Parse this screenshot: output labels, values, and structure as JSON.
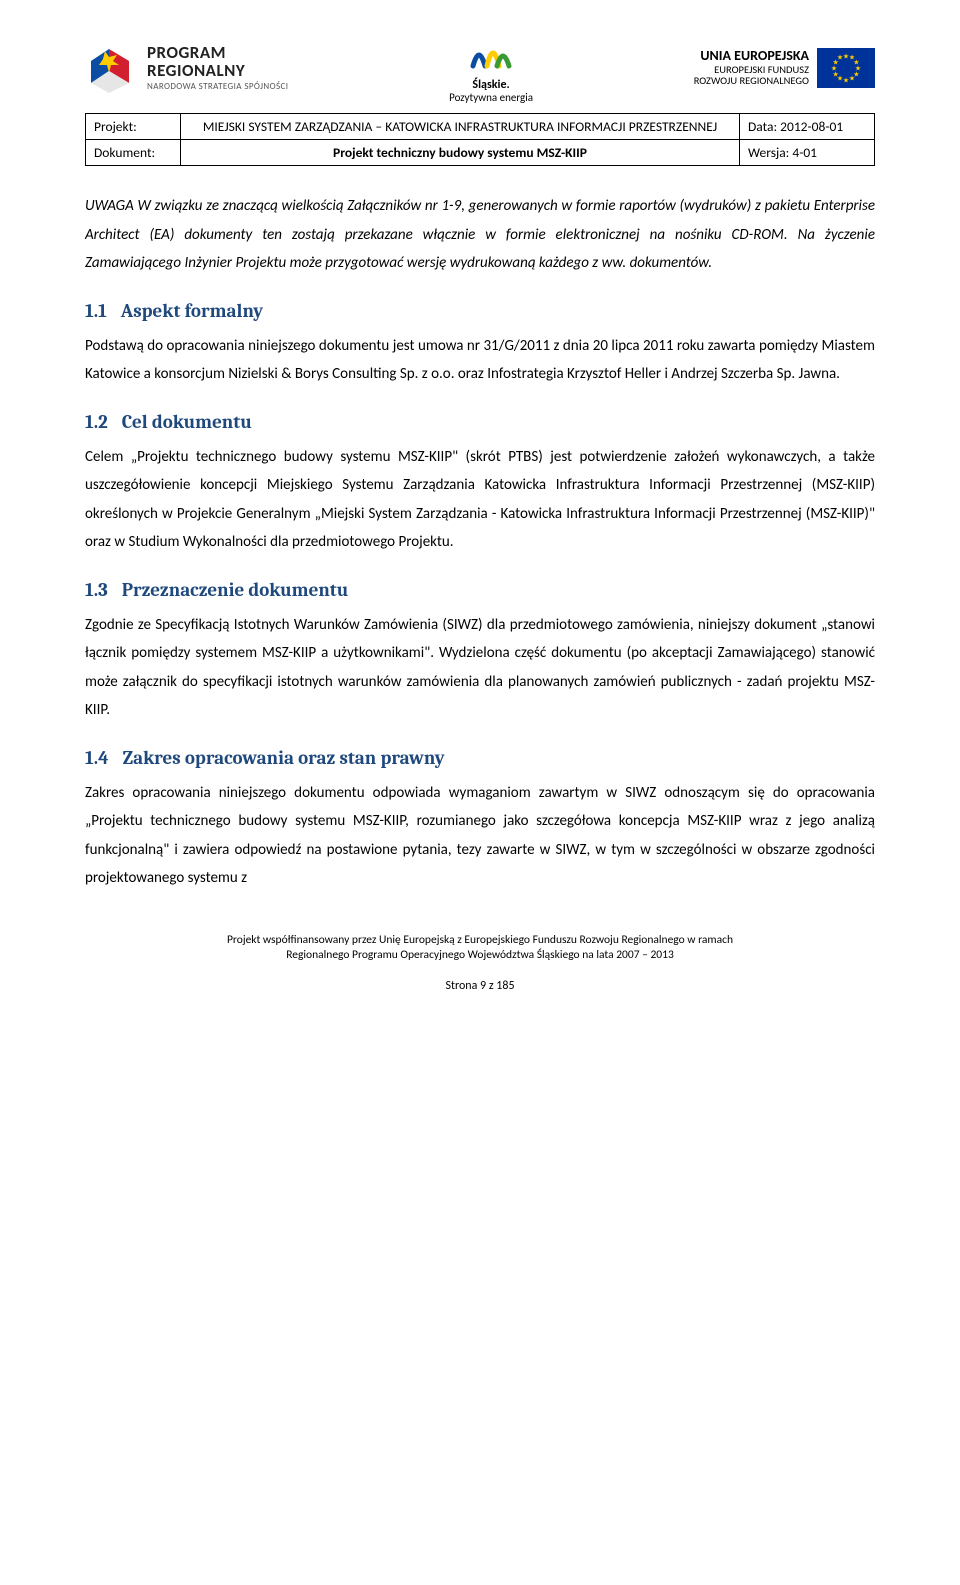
{
  "logos": {
    "program": {
      "line1": "PROGRAM",
      "line2": "REGIONALNY",
      "line3": "NARODOWA STRATEGIA SPÓJNOŚCI"
    },
    "slaskie": {
      "line1": "Śląskie.",
      "line2": "Pozytywna energia"
    },
    "eu": {
      "line1": "UNIA EUROPEJSKA",
      "line2": "EUROPEJSKI FUNDUSZ",
      "line3": "ROZWOJU REGIONALNEGO"
    }
  },
  "meta": {
    "row1": {
      "label": "Projekt:",
      "title": "MIEJSKI SYSTEM ZARZĄDZANIA – KATOWICKA INFRASTRUKTURA INFORMACJI PRZESTRZENNEJ",
      "date": "Data: 2012-08-01"
    },
    "row2": {
      "label": "Dokument:",
      "title": "Projekt techniczny budowy systemu MSZ-KIIP",
      "version": "Wersja: 4-01"
    }
  },
  "intro": {
    "p1": "UWAGA W związku ze znaczącą wielkością Załączników nr 1-9,  generowanych w formie raportów (wydruków) z pakietu Enterprise Architect (EA) dokumenty ten zostają przekazane włącznie w formie elektronicznej na nośniku CD-ROM.  Na życzenie Zamawiającego Inżynier Projektu może przygotować wersję wydrukowaną każdego z ww. dokumentów."
  },
  "sections": {
    "s11": {
      "num": "1.1",
      "title": "Aspekt formalny",
      "p1": "Podstawą do opracowania niniejszego dokumentu jest umowa nr 31/G/2011 z dnia 20 lipca 2011 roku zawarta pomiędzy Miastem Katowice a konsorcjum Nizielski & Borys Consulting  Sp. z o.o. oraz Infostrategia Krzysztof Heller i Andrzej Szczerba Sp. Jawna."
    },
    "s12": {
      "num": "1.2",
      "title": "Cel dokumentu",
      "p1": "Celem „Projektu technicznego budowy systemu MSZ-KIIP\" (skrót PTBS) jest potwierdzenie założeń wykonawczych, a także uszczegółowienie koncepcji Miejskiego Systemu Zarządzania Katowicka Infrastruktura Informacji Przestrzennej (MSZ-KIIP) określonych w Projekcie Generalnym „Miejski System Zarządzania - Katowicka Infrastruktura Informacji Przestrzennej (MSZ-KIIP)\" oraz w Studium Wykonalności dla przedmiotowego Projektu."
    },
    "s13": {
      "num": "1.3",
      "title": "Przeznaczenie dokumentu",
      "p1": "Zgodnie ze Specyfikacją Istotnych Warunków Zamówienia (SIWZ) dla przedmiotowego zamówienia, niniejszy dokument „stanowi łącznik pomiędzy systemem MSZ-KIIP a użytkownikami\". Wydzielona część dokumentu (po akceptacji Zamawiającego) stanowić może załącznik do specyfikacji istotnych warunków zamówienia dla planowanych zamówień publicznych - zadań projektu MSZ-KIIP."
    },
    "s14": {
      "num": "1.4",
      "title": "Zakres opracowania oraz stan prawny",
      "p1": "Zakres opracowania niniejszego dokumentu odpowiada wymaganiom zawartym w SIWZ odnoszącym się do opracowania „Projektu technicznego budowy systemu MSZ-KIIP, rozumianego jako szczegółowa koncepcja MSZ-KIIP wraz z jego analizą funkcjonalną\" i zawiera odpowiedź na postawione pytania, tezy zawarte w SIWZ, w tym w szczególności w obszarze zgodności projektowanego systemu z"
    }
  },
  "footer": {
    "line1": "Projekt współfinansowany przez Unię Europejską z  Europejskiego Funduszu Rozwoju Regionalnego  w ramach",
    "line2": "Regionalnego Programu Operacyjnego Województwa Śląskiego na lata 2007 – 2013",
    "page": "Strona 9 z 185"
  },
  "colors": {
    "heading": "#1f497d",
    "text": "#000000",
    "eu_blue": "#003399",
    "eu_gold": "#ffcc00"
  }
}
